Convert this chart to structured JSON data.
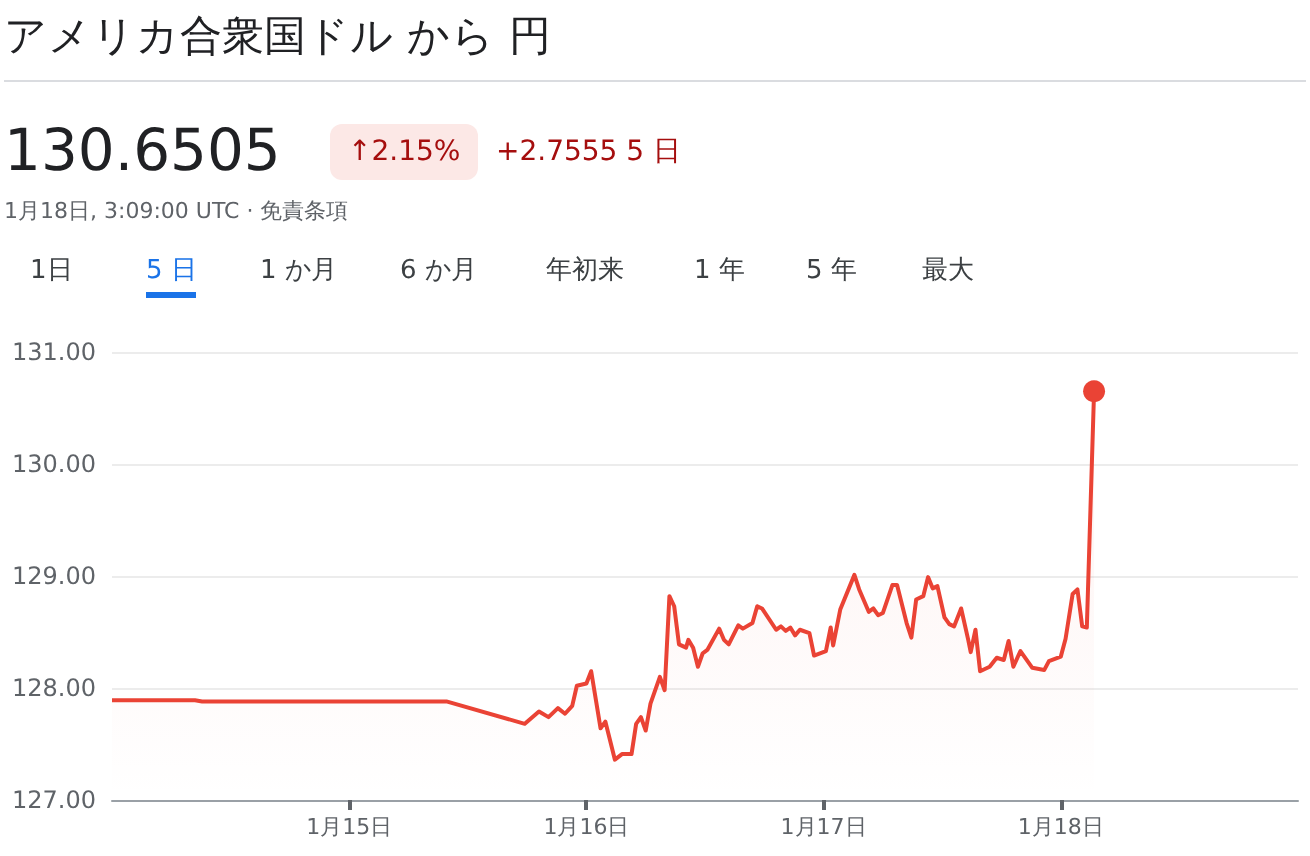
{
  "chart_data": {
    "type": "area",
    "title": "アメリカ合衆国ドル から 円",
    "subtitle": "1月18日, 3:09:00 UTC · 免責条項",
    "annotations": [
      "130.6505",
      "↑2.15%",
      "+2.7555 5 日",
      "1日",
      "5 日",
      "1 か月",
      "6 か月",
      "年初来",
      "1 年",
      "5 年",
      "最大"
    ],
    "xlim": [
      "--01-14",
      "--01-19"
    ],
    "xticks": [
      {
        "value": "--01-15",
        "label": "1月15日"
      },
      {
        "value": "--01-16",
        "label": "1月16日"
      },
      {
        "value": "--01-17",
        "label": "1月17日"
      },
      {
        "value": "--01-18",
        "label": "1月18日"
      }
    ],
    "ylim": [
      127,
      131
    ],
    "yticks": [
      {
        "value": 127,
        "label": "127.00"
      },
      {
        "value": 128,
        "label": "128.00"
      },
      {
        "value": 129,
        "label": "129.00"
      },
      {
        "value": 130,
        "label": "130.00"
      },
      {
        "value": 131,
        "label": "131.00"
      }
    ],
    "grid": "y",
    "marker": "none",
    "line_style": "solid",
    "series": [
      {
        "color": "#ea4335",
        "x": [
          "--01-14T00:00",
          "--01-14T08:24",
          "--01-14T09:07",
          "--01-15T09:50",
          "--01-15T17:46",
          "--01-15T19:12",
          "--01-15T20:10",
          "--01-15T21:07",
          "--01-15T21:50",
          "--01-15T22:34",
          "--01-15T23:02",
          "--01-16T00:00",
          "--01-16T00:29",
          "--01-16T01:26",
          "--01-16T01:55",
          "--01-16T02:53",
          "--01-16T03:36",
          "--01-16T04:34",
          "--01-16T05:02",
          "--01-16T05:31",
          "--01-16T06:00",
          "--01-16T06:29",
          "--01-16T07:26",
          "--01-16T07:55",
          "--01-16T08:24",
          "--01-16T08:53",
          "--01-16T09:22",
          "--01-16T10:05",
          "--01-16T10:19",
          "--01-16T10:48",
          "--01-16T11:17",
          "--01-16T11:46",
          "--01-16T12:14",
          "--01-16T13:26",
          "--01-16T13:55",
          "--01-16T14:24",
          "--01-16T15:22",
          "--01-16T15:50",
          "--01-16T16:48",
          "--01-16T17:17",
          "--01-16T17:46",
          "--01-16T19:12",
          "--01-16T19:41",
          "--01-16T20:10",
          "--01-16T20:38",
          "--01-16T21:07",
          "--01-16T21:36",
          "--01-16T22:34",
          "--01-16T23:02",
          "--01-17T00:14",
          "--01-17T00:43",
          "--01-17T00:58",
          "--01-17T01:41",
          "--01-17T03:07",
          "--01-17T03:36",
          "--01-17T04:34",
          "--01-17T05:02",
          "--01-17T05:31",
          "--01-17T06:00",
          "--01-17T06:58",
          "--01-17T07:26",
          "--01-17T08:24",
          "--01-17T08:53",
          "--01-17T09:22",
          "--01-17T10:05",
          "--01-17T10:34",
          "--01-17T11:02",
          "--01-17T11:31",
          "--01-17T12:14",
          "--01-17T12:43",
          "--01-17T13:12",
          "--01-17T13:55",
          "--01-17T14:38",
          "--01-17T14:53",
          "--01-17T15:22",
          "--01-17T15:50",
          "--01-17T16:48",
          "--01-17T17:31",
          "--01-17T18:14",
          "--01-17T18:43",
          "--01-17T19:12",
          "--01-17T19:55",
          "--01-17T21:07",
          "--01-17T22:19",
          "--01-17T22:48",
          "--01-18T00:00",
          "--01-18T00:29",
          "--01-18T01:12",
          "--01-18T01:41",
          "--01-18T02:10",
          "--01-18T02:38",
          "--01-18T03:22"
        ],
        "values": [
          127.89,
          127.89,
          127.88,
          127.88,
          127.68,
          127.79,
          127.74,
          127.82,
          127.77,
          127.84,
          128.02,
          128.04,
          128.15,
          127.64,
          127.7,
          127.36,
          127.41,
          127.41,
          127.68,
          127.74,
          127.62,
          127.86,
          128.1,
          127.98,
          128.82,
          128.73,
          128.39,
          128.36,
          128.43,
          128.36,
          128.19,
          128.31,
          128.34,
          128.53,
          128.43,
          128.39,
          128.56,
          128.53,
          128.58,
          128.73,
          128.71,
          128.52,
          128.55,
          128.51,
          128.54,
          128.47,
          128.52,
          128.49,
          128.29,
          128.33,
          128.54,
          128.38,
          128.7,
          129.01,
          128.88,
          128.68,
          128.71,
          128.65,
          128.67,
          128.92,
          128.92,
          128.58,
          128.45,
          128.79,
          128.82,
          128.99,
          128.89,
          128.91,
          128.63,
          128.57,
          128.55,
          128.71,
          128.43,
          128.32,
          128.52,
          128.15,
          128.19,
          128.27,
          128.25,
          128.42,
          128.19,
          128.33,
          128.18,
          128.16,
          128.24,
          128.28,
          128.44,
          128.84,
          128.88,
          128.55,
          128.54,
          130.65
        ]
      }
    ]
  }
}
